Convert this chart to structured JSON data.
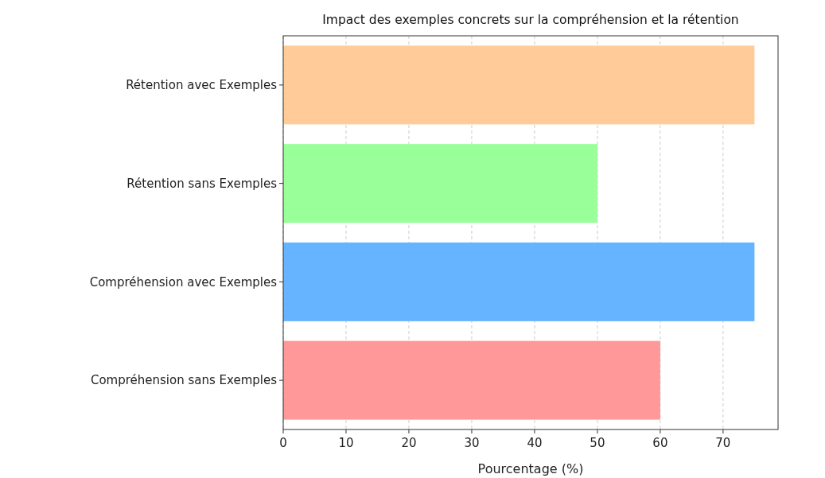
{
  "chart_data": {
    "type": "bar",
    "orientation": "horizontal",
    "title": "Impact des exemples concrets sur la compréhension et la rétention",
    "xlabel": "Pourcentage (%)",
    "categories": [
      "Rétention avec Exemples",
      "Rétention sans Exemples",
      "Compréhension avec Exemples",
      "Compréhension sans Exemples"
    ],
    "values": [
      75,
      50,
      75,
      60
    ],
    "colors": [
      "#ffcc99",
      "#99ff99",
      "#66b3ff",
      "#ff9999"
    ],
    "xlim": [
      0,
      78.75
    ],
    "xticks": [
      0,
      10,
      20,
      30,
      40,
      50,
      60,
      70
    ],
    "grid": "x",
    "line_style": "dashed"
  }
}
